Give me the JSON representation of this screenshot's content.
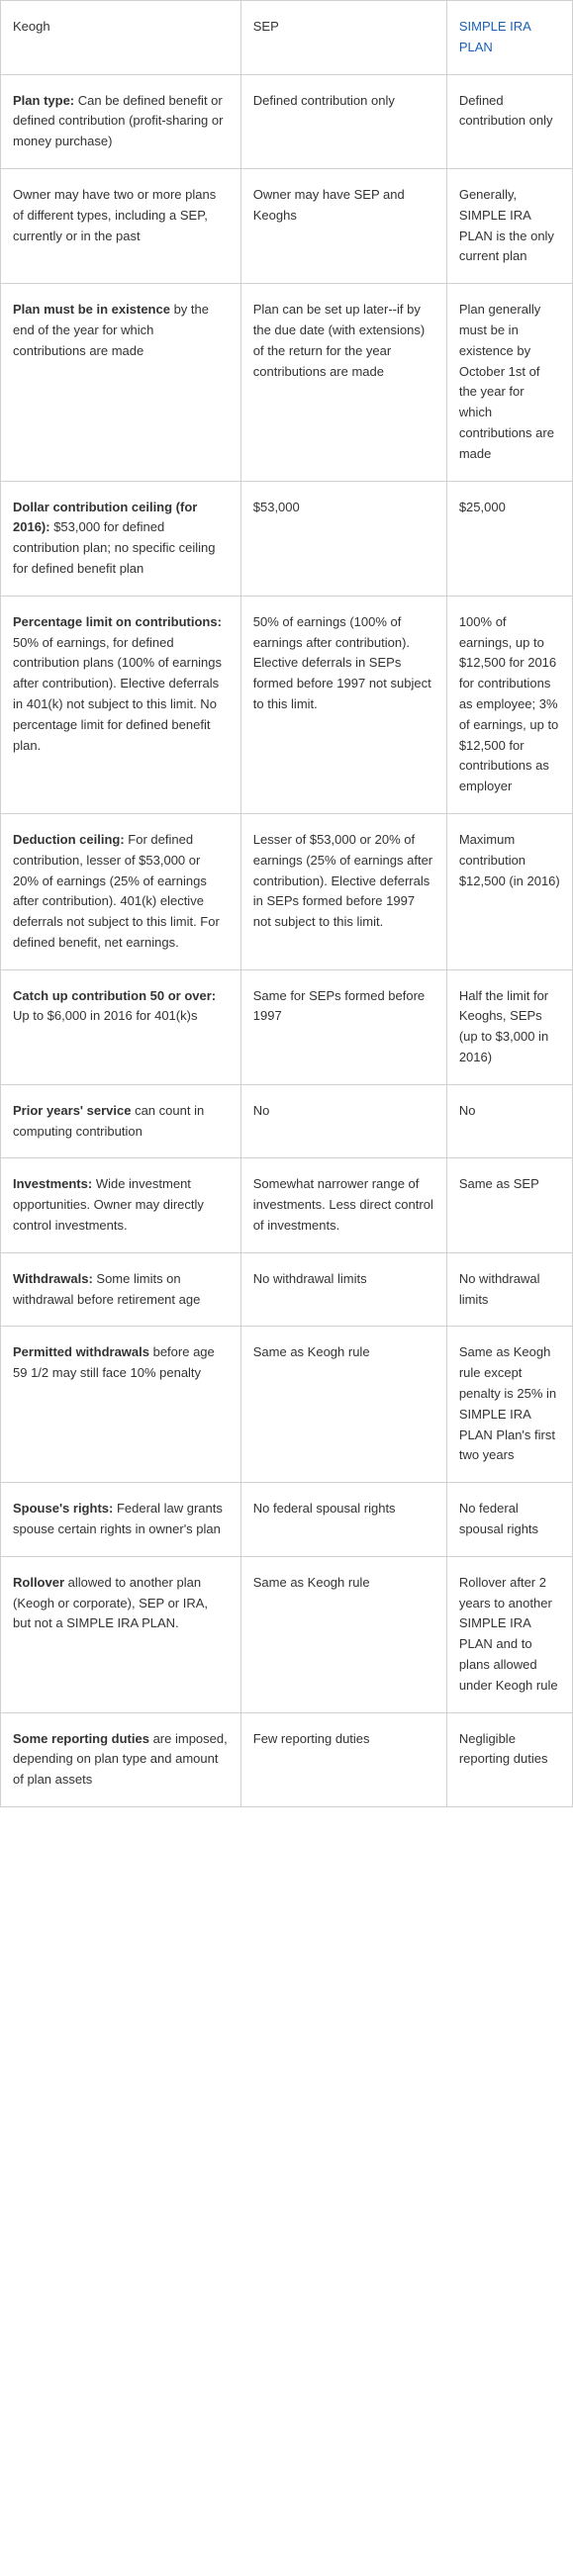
{
  "header": {
    "col1": "Keogh",
    "col2": "SEP",
    "col3_label": "SIMPLE IRA PLAN"
  },
  "rows": [
    {
      "c1_bold": "Plan type:",
      "c1_rest": " Can be defined benefit or defined contribution (profit-sharing or money purchase)",
      "c2": "Defined contribution only",
      "c3": "Defined contribution only"
    },
    {
      "c1_bold": "",
      "c1_rest": "Owner may have two or more plans of different types, including a SEP, currently or in the past",
      "c2": "Owner may have SEP and Keoghs",
      "c3": "Generally, SIMPLE IRA PLAN is the only current plan"
    },
    {
      "c1_bold": "Plan must be in existence",
      "c1_rest": " by the end of the year for which contributions are made",
      "c2": "Plan can be set up later--if by the due date (with extensions) of the return for the year contributions are made",
      "c3": "Plan generally must be in existence by October 1st of the year for which contributions are made"
    },
    {
      "c1_bold": "Dollar contribution ceiling (for 2016):",
      "c1_rest": " $53,000 for defined contribution plan; no specific ceiling for defined benefit plan",
      "c2": "$53,000",
      "c3": "$25,000"
    },
    {
      "c1_bold": "Percentage limit on contributions:",
      "c1_rest": " 50% of earnings, for defined contribution plans (100% of earnings after contribution). Elective deferrals in 401(k) not subject to this limit. No percentage limit for defined benefit plan.",
      "c2": "50% of earnings (100% of earnings after contribution). Elective deferrals in SEPs formed before 1997 not subject to this limit.",
      "c3": "100% of earnings, up to $12,500 for 2016 for contributions as employee; 3% of earnings, up to $12,500 for contributions as employer"
    },
    {
      "c1_bold": "Deduction ceiling:",
      "c1_rest": " For defined contribution, lesser of $53,000 or 20% of earnings (25% of earnings after contribution). 401(k) elective deferrals not subject to this limit. For defined benefit, net earnings.",
      "c2": "Lesser of $53,000 or 20% of earnings (25% of earnings after contribution). Elective deferrals in SEPs formed before 1997 not subject to this limit.",
      "c3": "Maximum contribution $12,500 (in 2016)"
    },
    {
      "c1_bold": "Catch up contribution 50 or over:",
      "c1_rest": " Up to $6,000 in 2016 for 401(k)s",
      "c2": "Same for SEPs formed before 1997",
      "c3": "Half the limit for Keoghs, SEPs (up to $3,000 in 2016)"
    },
    {
      "c1_bold": "Prior years' service",
      "c1_rest": " can count in computing contribution",
      "c2": "No",
      "c3": "No"
    },
    {
      "c1_bold": "Investments:",
      "c1_rest": " Wide investment opportunities. Owner may directly control investments.",
      "c2": "Somewhat narrower range of investments. Less direct control of investments.",
      "c3": "Same as SEP"
    },
    {
      "c1_bold": "Withdrawals:",
      "c1_rest": " Some limits on withdrawal before retirement age",
      "c2": "No withdrawal limits",
      "c3": "No withdrawal limits"
    },
    {
      "c1_bold": "Permitted withdrawals",
      "c1_rest": " before age 59 1/2 may still face 10% penalty",
      "c2": "Same as Keogh rule",
      "c3": "Same as Keogh rule except penalty is 25% in SIMPLE IRA PLAN Plan's first two years"
    },
    {
      "c1_bold": "Spouse's rights:",
      "c1_rest": " Federal law grants spouse certain rights in owner's plan",
      "c2": "No federal spousal rights",
      "c3": "No federal spousal rights"
    },
    {
      "c1_bold": "Rollover",
      "c1_rest": " allowed to another plan (Keogh or corporate), SEP or IRA, but not a SIMPLE IRA PLAN.",
      "c2": "Same as Keogh rule",
      "c3": "Rollover after 2 years to another SIMPLE IRA PLAN and to plans allowed under Keogh rule"
    },
    {
      "c1_bold": "Some reporting duties",
      "c1_rest": " are imposed, depending on plan type and amount of plan assets",
      "c2": "Few reporting duties",
      "c3": "Negligible reporting duties"
    }
  ]
}
